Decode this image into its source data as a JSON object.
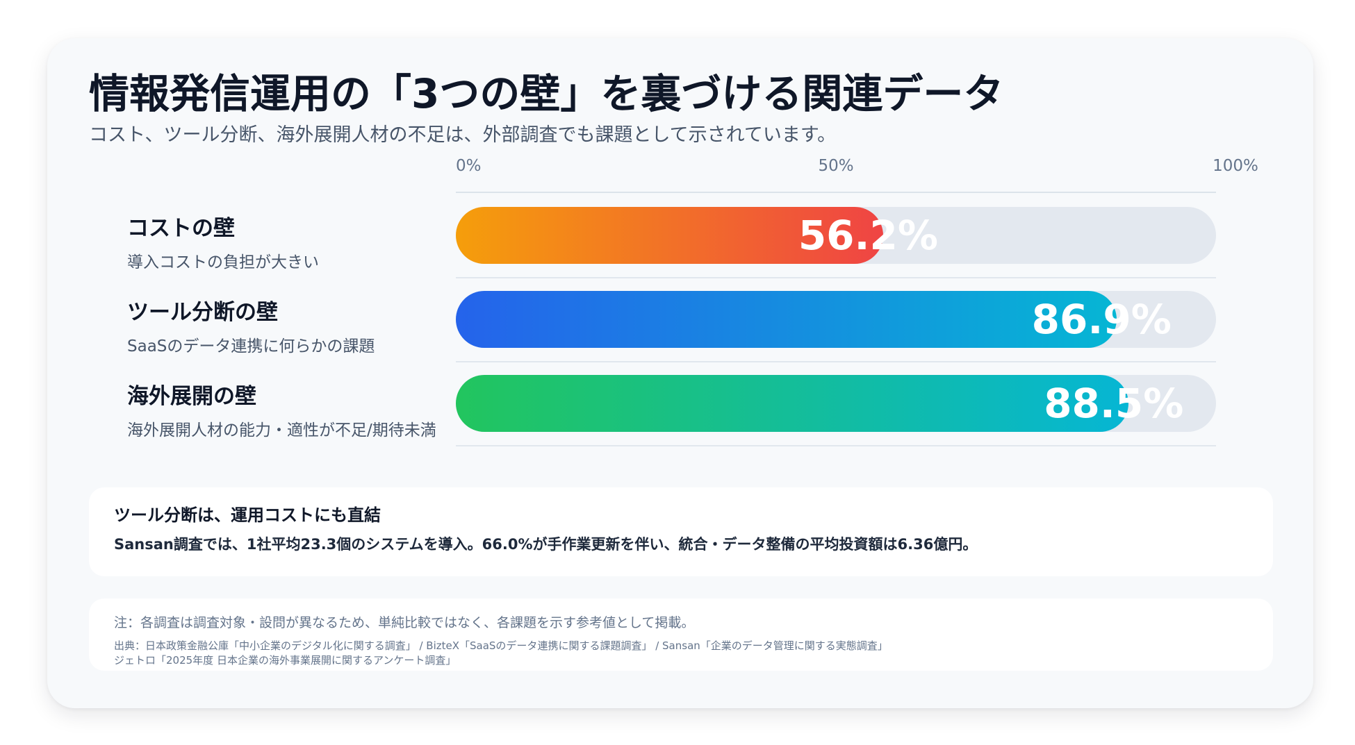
{
  "header": {
    "title": "情報発信運用の「3つの壁」を裏づける関連データ",
    "subtitle": "コスト、ツール分断、海外展開人材の不足は、外部調査でも課題として示されています。"
  },
  "chart_data": {
    "type": "bar",
    "orientation": "horizontal",
    "title": "",
    "xlim": [
      0,
      100
    ],
    "x_ticks": [
      "0%",
      "50%",
      "100%"
    ],
    "unit": "%",
    "categories": [
      "コストの壁",
      "ツール分断の壁",
      "海外展開の壁"
    ],
    "sublabels": [
      "導入コストの負担が大きい",
      "SaaSのデータ連携に何らかの課題",
      "海外展開人材の能力・適性が不足/期待未満"
    ],
    "values": [
      56.2,
      86.9,
      88.5
    ],
    "value_labels": [
      "56.2%",
      "86.9%",
      "88.5%"
    ],
    "colors": [
      [
        "#f59e0b",
        "#ef4444"
      ],
      [
        "#2563eb",
        "#06b6d4"
      ],
      [
        "#22c55e",
        "#06b6d4"
      ]
    ],
    "track_color": "#e3e8ef"
  },
  "note": {
    "title": "ツール分断は、運用コストにも直結",
    "text": "Sansan調査では、1社平均23.3個のシステムを導入。66.0%が手作業更新を伴い、統合・データ整備の平均投資額は6.36億円。"
  },
  "sources": {
    "note": "注：各調査は調査対象・設問が異なるため、単純比較ではなく、各課題を示す参考値として掲載。",
    "line1": "出典：日本政策金融公庫「中小企業のデジタル化に関する調査」 / BizteX「SaaSのデータ連携に関する課題調査」 / Sansan「企業のデータ管理に関する実態調査」",
    "line2": "ジェトロ「2025年度 日本企業の海外事業展開に関するアンケート調査」"
  }
}
